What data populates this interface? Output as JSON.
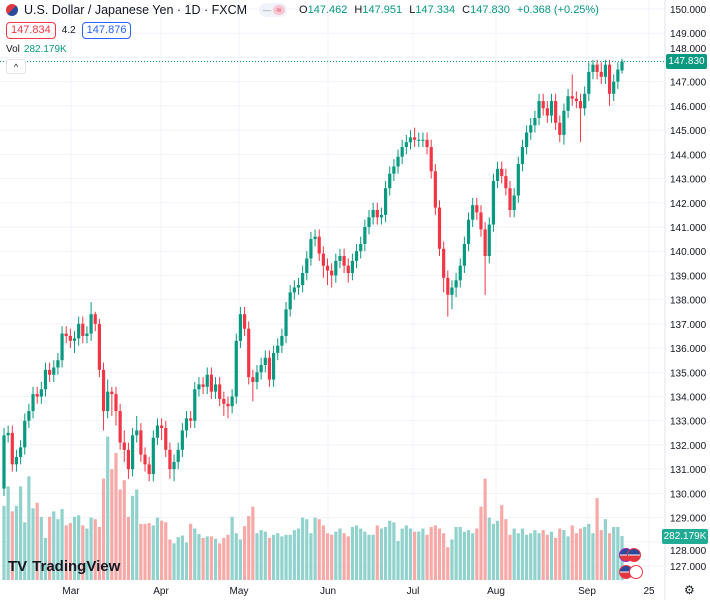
{
  "header": {
    "title": "U.S. Dollar / Japanese Yen · 1D · FXCM",
    "ohlc": {
      "o_label": "O",
      "o": "147.462",
      "h_label": "H",
      "h": "147.951",
      "l_label": "L",
      "l": "147.334",
      "c_label": "C",
      "c": "147.830",
      "change": "+0.368 (+0.25%)"
    },
    "toggle_left": "—",
    "toggle_right": "≈"
  },
  "trade": {
    "sell": "147.834",
    "spread": "4.2",
    "buy": "147.876"
  },
  "volume_legend": {
    "label": "Vol",
    "value": "282.179K"
  },
  "collapse_icon": "^",
  "branding": {
    "mark": "TV",
    "name": "TradingView"
  },
  "last_price_label": "147.830",
  "volume_axis_label": "282.179K",
  "settings_icon": "⚙",
  "colors": {
    "up": "#089981",
    "down": "#f23645",
    "up_volume": "#92d2cc",
    "down_volume": "#f7a9a7",
    "grid": "#f0f3fa",
    "last_price_line": "#089981"
  },
  "chart_data": {
    "type": "candlestick",
    "symbol": "USDJPY",
    "interval": "1D",
    "ylim": [
      126.5,
      150.2
    ],
    "y_ticks": [
      "150.000",
      "149.000",
      "148.000",
      "147.000",
      "146.000",
      "145.000",
      "144.000",
      "143.000",
      "142.000",
      "141.000",
      "140.000",
      "139.000",
      "138.000",
      "137.000",
      "136.000",
      "135.000",
      "134.000",
      "133.000",
      "132.000",
      "131.000",
      "130.000",
      "129.000",
      "128.000",
      "127.000"
    ],
    "x_ticks": [
      "Mar",
      "Apr",
      "May",
      "Jun",
      "Jul",
      "Aug",
      "Sep",
      "25"
    ],
    "grid": true,
    "open": [
      130.2,
      132.4,
      132.5,
      131.2,
      131.5,
      131.9,
      133.0,
      133.4,
      134.1,
      134.0,
      134.3,
      135.1,
      134.9,
      135.2,
      135.5,
      136.6,
      136.5,
      136.3,
      136.4,
      137.0,
      136.5,
      136.6,
      137.4,
      137.0,
      135.1,
      133.4,
      134.2,
      134.1,
      133.4,
      132.1,
      131.8,
      131.0,
      132.4,
      132.6,
      131.6,
      131.2,
      130.8,
      132.3,
      132.8,
      132.7,
      131.8,
      131.0,
      131.3,
      131.8,
      132.6,
      133.1,
      133.0,
      134.3,
      134.5,
      134.4,
      134.9,
      134.2,
      134.5,
      133.9,
      133.7,
      133.6,
      134.0,
      136.3,
      137.4,
      136.8,
      134.8,
      134.6,
      135.0,
      135.3,
      135.6,
      134.7,
      135.8,
      136.1,
      136.5,
      137.6,
      138.3,
      138.5,
      138.6,
      139.1,
      139.7,
      140.5,
      140.6,
      139.9,
      139.4,
      139.2,
      139.0,
      139.6,
      139.8,
      139.4,
      139.1,
      139.6,
      140.0,
      140.3,
      141.0,
      141.4,
      141.7,
      141.4,
      141.5,
      142.6,
      143.2,
      143.5,
      143.9,
      144.3,
      144.5,
      144.7,
      144.6,
      144.6,
      144.6,
      144.3,
      143.3,
      141.8,
      140.1,
      138.9,
      138.2,
      138.5,
      138.8,
      139.4,
      140.3,
      141.3,
      141.9,
      141.6,
      140.9,
      139.8,
      141.1,
      142.9,
      143.4,
      143.1,
      142.6,
      141.7,
      142.3,
      143.6,
      144.3,
      144.9,
      145.2,
      145.5,
      146.2,
      145.9,
      145.6,
      146.2,
      145.3,
      144.8,
      145.8,
      146.4,
      146.3,
      146.2,
      145.9,
      146.5,
      147.4,
      147.7,
      147.4,
      147.2,
      147.7,
      146.5,
      147.0,
      147.462
    ],
    "high": [
      132.7,
      132.8,
      132.8,
      131.8,
      132.2,
      133.3,
      133.7,
      134.4,
      134.4,
      134.6,
      135.4,
      135.4,
      135.5,
      135.8,
      136.9,
      136.9,
      136.8,
      136.7,
      137.3,
      137.3,
      136.9,
      137.9,
      137.5,
      137.2,
      135.4,
      134.7,
      134.4,
      134.4,
      133.7,
      132.6,
      132.1,
      132.7,
      133.2,
      132.9,
      131.9,
      131.5,
      132.6,
      133.1,
      133.1,
      133.0,
      132.1,
      131.6,
      132.1,
      132.9,
      133.4,
      133.4,
      134.6,
      134.8,
      134.8,
      135.2,
      135.2,
      134.8,
      134.8,
      134.2,
      134.0,
      134.3,
      136.6,
      137.7,
      137.7,
      137.1,
      135.1,
      135.3,
      135.6,
      135.9,
      135.9,
      136.1,
      136.4,
      136.8,
      137.9,
      138.6,
      138.8,
      138.9,
      139.4,
      140.0,
      140.8,
      140.9,
      140.9,
      140.2,
      139.7,
      139.5,
      139.9,
      140.1,
      140.1,
      139.7,
      139.9,
      140.3,
      140.6,
      141.3,
      141.7,
      142.0,
      142.0,
      141.8,
      142.9,
      143.5,
      143.8,
      144.2,
      144.6,
      144.8,
      145.0,
      145.1,
      144.9,
      144.9,
      144.9,
      144.6,
      143.6,
      142.1,
      140.4,
      139.2,
      138.8,
      139.1,
      139.7,
      140.6,
      141.6,
      142.2,
      142.2,
      141.9,
      141.2,
      141.4,
      143.2,
      143.7,
      143.7,
      143.4,
      142.9,
      142.6,
      143.9,
      144.6,
      145.2,
      145.5,
      145.8,
      146.5,
      146.5,
      146.2,
      146.5,
      146.5,
      145.6,
      146.1,
      146.7,
      147.3,
      146.6,
      146.5,
      146.8,
      147.8,
      147.9,
      147.9,
      147.8,
      147.9,
      147.9,
      147.3,
      147.8,
      147.951
    ],
    "low": [
      129.9,
      132.1,
      130.9,
      130.9,
      131.2,
      131.6,
      132.7,
      133.1,
      133.7,
      133.7,
      134.0,
      134.6,
      134.6,
      134.9,
      135.2,
      136.2,
      136.0,
      135.8,
      136.1,
      136.2,
      136.2,
      136.3,
      136.7,
      134.8,
      132.6,
      133.1,
      133.2,
      132.8,
      131.8,
      131.3,
      130.6,
      130.7,
      132.1,
      131.3,
      130.9,
      130.5,
      130.5,
      132.0,
      132.2,
      131.5,
      130.6,
      130.5,
      131.0,
      131.5,
      132.3,
      132.7,
      132.7,
      134.0,
      134.1,
      134.1,
      133.9,
      133.9,
      133.6,
      133.2,
      133.1,
      133.3,
      133.7,
      136.0,
      136.5,
      134.5,
      133.8,
      134.3,
      134.7,
      135.0,
      134.4,
      134.4,
      135.5,
      135.8,
      136.2,
      137.3,
      138.0,
      138.2,
      138.3,
      138.8,
      139.4,
      140.2,
      139.6,
      138.9,
      138.6,
      138.5,
      138.7,
      139.3,
      139.1,
      138.7,
      138.8,
      139.3,
      139.7,
      140.0,
      140.7,
      141.1,
      141.1,
      141.1,
      141.2,
      142.3,
      142.9,
      143.2,
      143.6,
      144.0,
      144.2,
      144.3,
      144.3,
      144.3,
      144.0,
      143.0,
      141.5,
      139.8,
      138.3,
      137.3,
      137.6,
      138.1,
      138.5,
      139.1,
      140.0,
      141.0,
      141.3,
      140.6,
      138.2,
      139.5,
      140.8,
      142.6,
      142.8,
      142.3,
      141.4,
      141.4,
      142.0,
      143.3,
      144.0,
      144.6,
      144.9,
      145.2,
      145.6,
      145.3,
      145.3,
      145.0,
      144.5,
      144.4,
      145.5,
      146.0,
      145.9,
      144.5,
      145.6,
      146.2,
      147.1,
      147.1,
      146.9,
      146.9,
      146.0,
      146.2,
      146.7,
      147.334
    ],
    "close": [
      132.4,
      132.5,
      131.2,
      131.5,
      131.9,
      133.0,
      133.4,
      134.1,
      134.0,
      134.3,
      135.1,
      134.9,
      135.2,
      135.5,
      136.6,
      136.5,
      136.3,
      136.4,
      137.0,
      136.5,
      136.6,
      137.4,
      137.0,
      135.1,
      133.4,
      134.2,
      134.1,
      133.4,
      132.1,
      131.8,
      131.0,
      132.4,
      132.6,
      131.6,
      131.2,
      130.8,
      132.3,
      132.8,
      132.7,
      131.8,
      131.0,
      131.3,
      131.8,
      132.6,
      133.1,
      133.0,
      134.3,
      134.5,
      134.4,
      134.9,
      134.2,
      134.5,
      133.9,
      133.7,
      133.6,
      134.0,
      136.3,
      137.4,
      136.8,
      134.8,
      134.6,
      135.0,
      135.3,
      135.6,
      134.7,
      135.8,
      136.1,
      136.5,
      137.6,
      138.3,
      138.5,
      138.6,
      139.1,
      139.7,
      140.5,
      140.6,
      139.9,
      139.4,
      139.2,
      139.0,
      139.6,
      139.8,
      139.4,
      139.1,
      139.6,
      140.0,
      140.3,
      141.0,
      141.4,
      141.7,
      141.4,
      141.5,
      142.6,
      143.2,
      143.5,
      143.9,
      144.3,
      144.5,
      144.7,
      144.6,
      144.6,
      144.6,
      144.3,
      143.3,
      141.8,
      140.1,
      138.9,
      138.2,
      138.5,
      138.8,
      139.4,
      140.3,
      141.3,
      141.9,
      141.6,
      140.9,
      139.8,
      141.1,
      142.9,
      143.4,
      143.1,
      142.6,
      141.7,
      142.3,
      143.6,
      144.3,
      144.9,
      145.2,
      145.5,
      146.2,
      145.9,
      145.6,
      146.2,
      145.3,
      144.8,
      145.8,
      146.4,
      146.3,
      146.2,
      145.9,
      146.5,
      147.4,
      147.7,
      147.4,
      147.2,
      147.7,
      146.5,
      147.0,
      147.5,
      147.83
    ],
    "volume_k": [
      475,
      600,
      440,
      475,
      600,
      370,
      665,
      460,
      495,
      405,
      270,
      405,
      440,
      390,
      455,
      350,
      365,
      405,
      415,
      350,
      330,
      400,
      390,
      340,
      650,
      920,
      710,
      815,
      580,
      640,
      405,
      540,
      580,
      360,
      360,
      365,
      350,
      400,
      380,
      370,
      260,
      235,
      275,
      285,
      240,
      360,
      330,
      295,
      270,
      280,
      280,
      265,
      235,
      270,
      290,
      405,
      300,
      260,
      345,
      410,
      470,
      300,
      320,
      310,
      270,
      290,
      300,
      280,
      290,
      290,
      320,
      330,
      400,
      390,
      300,
      400,
      390,
      350,
      300,
      290,
      310,
      330,
      300,
      280,
      340,
      350,
      330,
      310,
      290,
      290,
      350,
      330,
      340,
      380,
      370,
      250,
      330,
      350,
      330,
      310,
      310,
      330,
      290,
      340,
      350,
      330,
      300,
      210,
      260,
      340,
      340,
      310,
      320,
      300,
      330,
      470,
      650,
      400,
      360,
      380,
      480,
      390,
      290,
      330,
      300,
      330,
      290,
      300,
      320,
      300,
      320,
      290,
      310,
      270,
      330,
      320,
      280,
      350,
      300,
      330,
      340,
      360,
      300,
      525,
      320,
      390,
      300,
      340,
      340,
      282.179
    ],
    "last_price": 147.83
  }
}
